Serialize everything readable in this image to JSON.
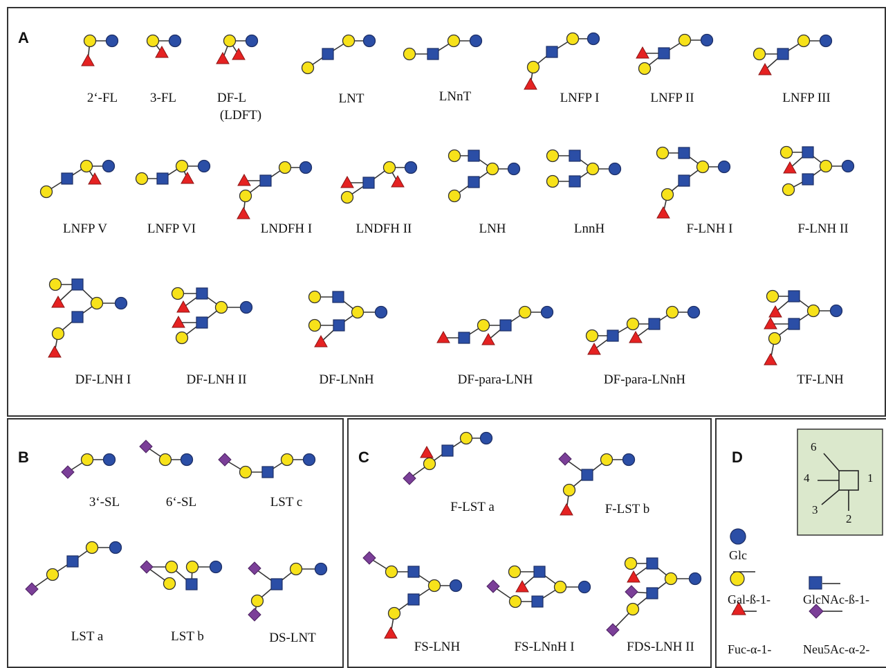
{
  "panels": {
    "a": {
      "label": "A"
    },
    "b": {
      "label": "B"
    },
    "c": {
      "label": "C"
    },
    "d": {
      "label": "D"
    }
  },
  "names": {
    "fl2": "2‘-FL",
    "fl3": "3-FL",
    "dfl_1": "DF-L",
    "dfl_2": "(LDFT)",
    "lnt": "LNT",
    "lnnt": "LNnT",
    "lnfp1": "LNFP I",
    "lnfp2": "LNFP II",
    "lnfp3": "LNFP III",
    "lnfp5": "LNFP V",
    "lnfp6": "LNFP VI",
    "lndfh1": "LNDFH I",
    "lndfh2": "LNDFH II",
    "lnh": "LNH",
    "lnnh": "LnnH",
    "flnh1": "F-LNH I",
    "flnh2": "F-LNH II",
    "dflnh1": "DF-LNH I",
    "dflnh2": "DF-LNH II",
    "dflnnh": "DF-LNnH",
    "dfparalnh": "DF-para-LNH",
    "dfparalnnh": "DF-para-LNnH",
    "tflnh": "TF-LNH",
    "sl3": "3‘-SL",
    "sl6": "6‘-SL",
    "lstc": "LST c",
    "lsta": "LST a",
    "lstb": "LST b",
    "dslnt": "DS-LNT",
    "flsta": "F-LST a",
    "flstb": "F-LST b",
    "fslnh": "FS-LNH",
    "fslnnh1": "FS-LNnH I",
    "fdslnh2": "FDS-LNH II"
  },
  "legend": {
    "glc": "Glc",
    "gal": "Gal-ß-1-",
    "glcnac": "GlcNAc-ß-1-",
    "fuc": "Fuc-α-1-",
    "neu5ac": "Neu5Ac-α-2-"
  },
  "anomer": {
    "p1": "1",
    "p2": "2",
    "p3": "3",
    "p4": "4",
    "p6": "6"
  },
  "colors": {
    "glc": "#2b4ea6",
    "gal": "#f7e21a",
    "glcnac": "#2b4ea6",
    "fuc": "#e52222",
    "neu5ac": "#7b3f98",
    "legend_box": "#dbe8cc"
  }
}
